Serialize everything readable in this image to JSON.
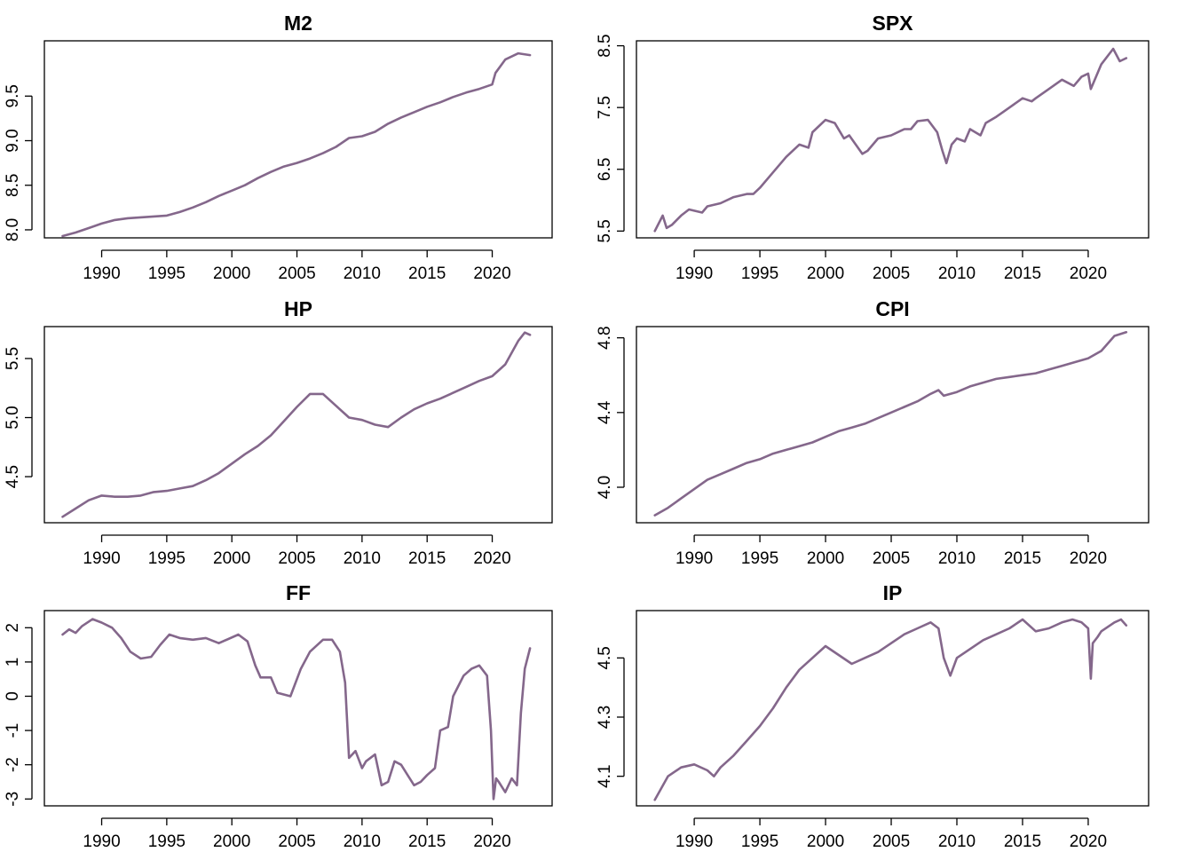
{
  "series_color": "#84678b",
  "chart_data": [
    {
      "type": "line",
      "title": "M2",
      "xlabel": "",
      "ylabel": "",
      "x_ticks": [
        1990,
        1995,
        2000,
        2005,
        2010,
        2015,
        2020
      ],
      "y_ticks": [
        8.0,
        8.5,
        9.0,
        9.5
      ],
      "y_tick_labels": [
        "8.0",
        "8.5",
        "9.0",
        "9.5"
      ],
      "xlim": [
        1985.6,
        2024.6
      ],
      "ylim": [
        7.91,
        10.12
      ],
      "series": [
        {
          "x": [
            1987,
            1988,
            1989,
            1990,
            1991,
            1992,
            1993,
            1994,
            1995,
            1996,
            1997,
            1998,
            1999,
            2000,
            2001,
            2002,
            2003,
            2004,
            2005,
            2006,
            2007,
            2008,
            2009,
            2010,
            2011,
            2012,
            2013,
            2014,
            2015,
            2016,
            2017,
            2018,
            2019,
            2020,
            2020.25,
            2021,
            2022,
            2022.9
          ],
          "y": [
            7.93,
            7.97,
            8.02,
            8.07,
            8.11,
            8.13,
            8.14,
            8.15,
            8.16,
            8.2,
            8.25,
            8.31,
            8.38,
            8.44,
            8.5,
            8.58,
            8.65,
            8.71,
            8.75,
            8.8,
            8.86,
            8.93,
            9.03,
            9.05,
            9.1,
            9.19,
            9.26,
            9.32,
            9.38,
            9.43,
            9.49,
            9.54,
            9.58,
            9.63,
            9.76,
            9.91,
            9.98,
            9.96
          ]
        }
      ]
    },
    {
      "type": "line",
      "title": "SPX",
      "xlabel": "",
      "ylabel": "",
      "x_ticks": [
        1990,
        1995,
        2000,
        2005,
        2010,
        2015,
        2020
      ],
      "y_ticks": [
        5.5,
        6.5,
        7.5,
        8.5
      ],
      "y_tick_labels": [
        "5.5",
        "6.5",
        "7.5",
        "8.5"
      ],
      "xlim": [
        1985.6,
        2024.6
      ],
      "ylim": [
        5.39,
        8.58
      ],
      "series": [
        {
          "x": [
            1987,
            1987.6,
            1987.9,
            1988.3,
            1989,
            1989.6,
            1990.6,
            1991,
            1992,
            1993,
            1994,
            1994.5,
            1995,
            1996,
            1997,
            1998,
            1998.7,
            1999,
            2000,
            2000.7,
            2001.4,
            2001.8,
            2002.8,
            2003.2,
            2004,
            2005,
            2006,
            2006.5,
            2007,
            2007.8,
            2008.5,
            2008.9,
            2009.2,
            2009.6,
            2010,
            2010.6,
            2011,
            2011.8,
            2012.2,
            2013,
            2014,
            2015,
            2015.7,
            2016,
            2017,
            2018,
            2018.9,
            2019.5,
            2020,
            2020.2,
            2020.6,
            2021,
            2021.9,
            2022.4,
            2022.9
          ],
          "y": [
            5.5,
            5.75,
            5.55,
            5.6,
            5.75,
            5.85,
            5.8,
            5.9,
            5.95,
            6.05,
            6.1,
            6.1,
            6.2,
            6.45,
            6.7,
            6.9,
            6.85,
            7.1,
            7.3,
            7.25,
            7.0,
            7.05,
            6.75,
            6.8,
            7.0,
            7.05,
            7.15,
            7.15,
            7.28,
            7.3,
            7.1,
            6.8,
            6.6,
            6.9,
            7.0,
            6.95,
            7.15,
            7.05,
            7.25,
            7.35,
            7.5,
            7.65,
            7.6,
            7.65,
            7.8,
            7.95,
            7.85,
            8.0,
            8.05,
            7.8,
            8.0,
            8.2,
            8.45,
            8.25,
            8.3
          ]
        }
      ]
    },
    {
      "type": "line",
      "title": "HP",
      "xlabel": "",
      "ylabel": "",
      "x_ticks": [
        1990,
        1995,
        2000,
        2005,
        2010,
        2015,
        2020
      ],
      "y_ticks": [
        4.5,
        5.0,
        5.5
      ],
      "y_tick_labels": [
        "4.5",
        "5.0",
        "5.5"
      ],
      "xlim": [
        1985.6,
        2024.6
      ],
      "ylim": [
        4.11,
        5.77
      ],
      "series": [
        {
          "x": [
            1987,
            1988,
            1989,
            1990,
            1991,
            1992,
            1993,
            1994,
            1995,
            1996,
            1997,
            1998,
            1999,
            2000,
            2001,
            2002,
            2003,
            2004,
            2005,
            2006,
            2007,
            2008,
            2009,
            2010,
            2011,
            2012,
            2013,
            2014,
            2015,
            2016,
            2017,
            2018,
            2019,
            2020,
            2021,
            2022,
            2022.5,
            2022.9
          ],
          "y": [
            4.16,
            4.23,
            4.3,
            4.34,
            4.33,
            4.33,
            4.34,
            4.37,
            4.38,
            4.4,
            4.42,
            4.47,
            4.53,
            4.61,
            4.69,
            4.76,
            4.85,
            4.97,
            5.09,
            5.2,
            5.2,
            5.1,
            5.0,
            4.98,
            4.94,
            4.92,
            5.0,
            5.07,
            5.12,
            5.16,
            5.21,
            5.26,
            5.31,
            5.35,
            5.45,
            5.65,
            5.72,
            5.7
          ]
        }
      ]
    },
    {
      "type": "line",
      "title": "CPI",
      "xlabel": "",
      "ylabel": "",
      "x_ticks": [
        1990,
        1995,
        2000,
        2005,
        2010,
        2015,
        2020
      ],
      "y_ticks": [
        4.0,
        4.4,
        4.8
      ],
      "y_tick_labels": [
        "4.0",
        "4.4",
        "4.8"
      ],
      "xlim": [
        1985.6,
        2024.6
      ],
      "ylim": [
        3.81,
        4.86
      ],
      "series": [
        {
          "x": [
            1987,
            1988,
            1989,
            1990,
            1991,
            1992,
            1993,
            1994,
            1995,
            1996,
            1997,
            1998,
            1999,
            2000,
            2001,
            2002,
            2003,
            2004,
            2005,
            2006,
            2007,
            2008,
            2008.6,
            2009,
            2010,
            2011,
            2012,
            2013,
            2014,
            2015,
            2016,
            2017,
            2018,
            2019,
            2020,
            2021,
            2022,
            2022.9
          ],
          "y": [
            3.85,
            3.89,
            3.94,
            3.99,
            4.04,
            4.07,
            4.1,
            4.13,
            4.15,
            4.18,
            4.2,
            4.22,
            4.24,
            4.27,
            4.3,
            4.32,
            4.34,
            4.37,
            4.4,
            4.43,
            4.46,
            4.5,
            4.52,
            4.49,
            4.51,
            4.54,
            4.56,
            4.58,
            4.59,
            4.6,
            4.61,
            4.63,
            4.65,
            4.67,
            4.69,
            4.73,
            4.81,
            4.83
          ]
        }
      ]
    },
    {
      "type": "line",
      "title": "FF",
      "xlabel": "",
      "ylabel": "",
      "x_ticks": [
        1990,
        1995,
        2000,
        2005,
        2010,
        2015,
        2020
      ],
      "y_ticks": [
        -3,
        -2,
        -1,
        0,
        1,
        2
      ],
      "y_tick_labels": [
        "-3",
        "-2",
        "-1",
        "0",
        "1",
        "2"
      ],
      "xlim": [
        1985.6,
        2024.6
      ],
      "ylim": [
        -3.2,
        2.5
      ],
      "series": [
        {
          "x": [
            1987,
            1987.5,
            1988,
            1988.5,
            1989.3,
            1990,
            1990.8,
            1991.5,
            1992.2,
            1993,
            1993.8,
            1994.5,
            1995.2,
            1996,
            1997,
            1998,
            1999,
            2000.5,
            2001.2,
            2001.8,
            2002.2,
            2003,
            2003.5,
            2004.5,
            2005.3,
            2006,
            2007,
            2007.7,
            2008.3,
            2008.7,
            2009,
            2009.5,
            2010,
            2010.3,
            2011,
            2011.5,
            2012,
            2012.5,
            2013,
            2013.5,
            2014,
            2014.5,
            2015,
            2015.6,
            2016,
            2016.6,
            2017,
            2017.8,
            2018.4,
            2019,
            2019.6,
            2019.9,
            2020.1,
            2020.3,
            2020.5,
            2021,
            2021.5,
            2021.9,
            2022.2,
            2022.5,
            2022.9
          ],
          "y": [
            1.8,
            1.95,
            1.85,
            2.05,
            2.25,
            2.15,
            2.0,
            1.7,
            1.3,
            1.1,
            1.15,
            1.5,
            1.8,
            1.7,
            1.65,
            1.7,
            1.55,
            1.8,
            1.6,
            0.9,
            0.55,
            0.55,
            0.1,
            0.0,
            0.8,
            1.3,
            1.65,
            1.65,
            1.3,
            0.4,
            -1.8,
            -1.6,
            -2.1,
            -1.9,
            -1.7,
            -2.6,
            -2.5,
            -1.9,
            -2.0,
            -2.3,
            -2.6,
            -2.5,
            -2.3,
            -2.1,
            -1.0,
            -0.9,
            0.0,
            0.6,
            0.8,
            0.9,
            0.6,
            -1.0,
            -3.0,
            -2.4,
            -2.5,
            -2.8,
            -2.4,
            -2.6,
            -0.5,
            0.8,
            1.4
          ]
        }
      ]
    },
    {
      "type": "line",
      "title": "IP",
      "xlabel": "",
      "ylabel": "",
      "x_ticks": [
        1990,
        1995,
        2000,
        2005,
        2010,
        2015,
        2020
      ],
      "y_ticks": [
        4.1,
        4.3,
        4.5
      ],
      "y_tick_labels": [
        "4.1",
        "4.3",
        "4.5"
      ],
      "xlim": [
        1985.6,
        2024.6
      ],
      "ylim": [
        4.0,
        4.66
      ],
      "series": [
        {
          "x": [
            1987,
            1987.5,
            1988,
            1989,
            1990,
            1991,
            1991.5,
            1992,
            1993,
            1994,
            1995,
            1996,
            1997,
            1998,
            1999,
            2000,
            2001,
            2002,
            2003,
            2004,
            2005,
            2006,
            2007,
            2008,
            2008.6,
            2009,
            2009.5,
            2010,
            2011,
            2012,
            2013,
            2014,
            2015,
            2016,
            2017,
            2018,
            2018.8,
            2019.5,
            2020,
            2020.2,
            2020.35,
            2020.7,
            2021,
            2022,
            2022.5,
            2022.9
          ],
          "y": [
            4.02,
            4.06,
            4.1,
            4.13,
            4.14,
            4.12,
            4.1,
            4.13,
            4.17,
            4.22,
            4.27,
            4.33,
            4.4,
            4.46,
            4.5,
            4.54,
            4.51,
            4.48,
            4.5,
            4.52,
            4.55,
            4.58,
            4.6,
            4.62,
            4.6,
            4.5,
            4.44,
            4.5,
            4.53,
            4.56,
            4.58,
            4.6,
            4.63,
            4.59,
            4.6,
            4.62,
            4.63,
            4.62,
            4.6,
            4.43,
            4.55,
            4.57,
            4.59,
            4.62,
            4.63,
            4.61
          ]
        }
      ]
    }
  ]
}
